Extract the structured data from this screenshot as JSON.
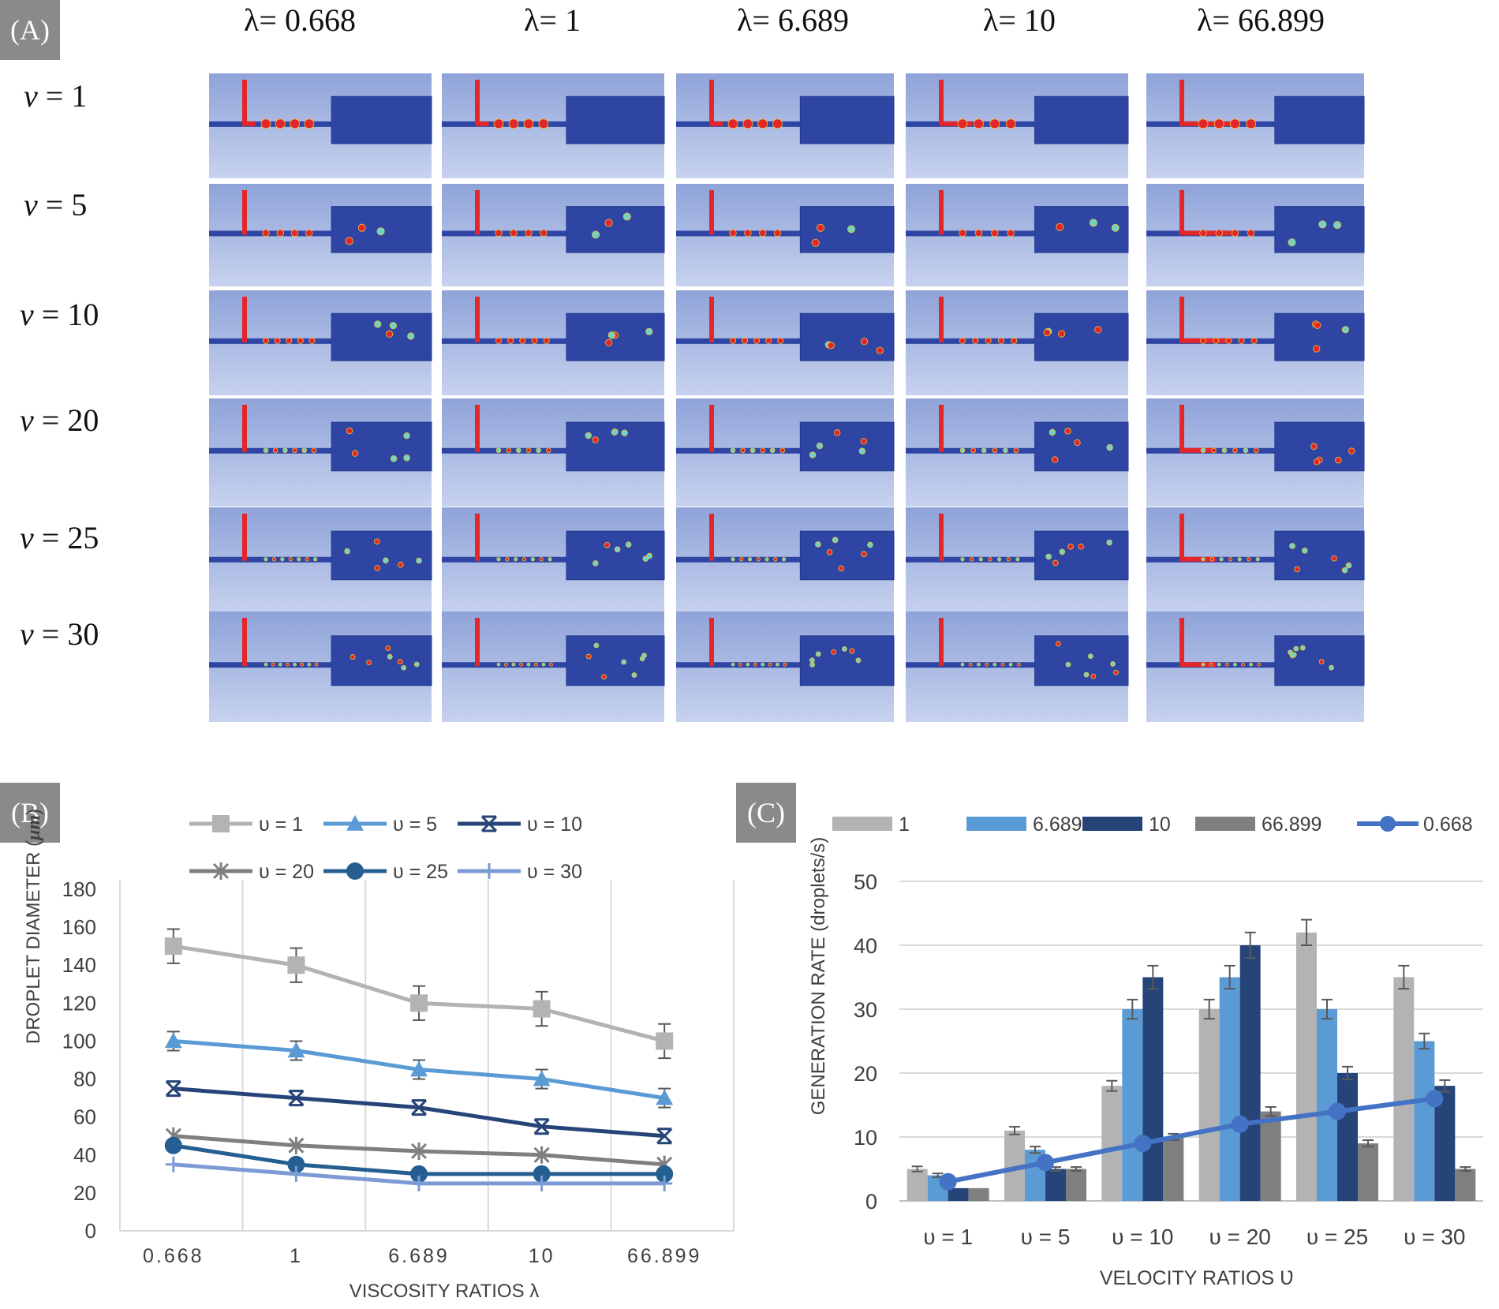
{
  "panels": {
    "a_label": "(A)",
    "b_label": "(B)",
    "c_label": "(C)"
  },
  "simulation_grid": {
    "lambda_headers": [
      "λ= 0.668",
      "λ= 1",
      "λ= 6.689",
      "λ= 10",
      "λ= 66.899"
    ],
    "v_labels": [
      {
        "sym": "v",
        "val": " = 1"
      },
      {
        "sym": "v",
        "val": " = 5"
      },
      {
        "sym": "v",
        "val": " = 10"
      },
      {
        "sym": "v",
        "val": " = 20"
      },
      {
        "sym": "v",
        "val": " = 25"
      },
      {
        "sym": "v",
        "val": " = 30"
      }
    ],
    "colors": {
      "background_top": "#8fa3d9",
      "background_bottom": "#c7d2ee",
      "channel": "#2e45a3",
      "dispersed_phase": "#e3262a",
      "droplet_small": "#6fd3c6"
    }
  },
  "chart_data": [
    {
      "type": "line",
      "title": "",
      "xlabel": "VISCOSITY RATIOS λ",
      "ylabel": "DROPLET DIAMETER (",
      "ylabel_unit": "μm",
      "ylabel_close": ")",
      "categories": [
        "0.668",
        "1",
        "6.689",
        "10",
        "66.899"
      ],
      "ylim": [
        0,
        180
      ],
      "yticks": [
        "0",
        "20",
        "40",
        "60",
        "80",
        "100",
        "120",
        "140",
        "160",
        "180"
      ],
      "grid": "vertical",
      "legend_position": "top",
      "series": [
        {
          "name": "υ = 1",
          "values": [
            150,
            140,
            120,
            117,
            100
          ],
          "errors": [
            9,
            9,
            9,
            9,
            9
          ],
          "color": "#b3b3b3",
          "marker": "square"
        },
        {
          "name": "υ = 5",
          "values": [
            100,
            95,
            85,
            80,
            70
          ],
          "errors": [
            5,
            5,
            5,
            5,
            5
          ],
          "color": "#5b9bd5",
          "marker": "triangle"
        },
        {
          "name": "υ = 10",
          "values": [
            75,
            70,
            65,
            55,
            50
          ],
          "errors": [
            0,
            0,
            0,
            0,
            0
          ],
          "color": "#264478",
          "marker": "x"
        },
        {
          "name": "υ = 20",
          "values": [
            50,
            45,
            42,
            40,
            35
          ],
          "errors": [
            0,
            0,
            0,
            0,
            0
          ],
          "color": "#7f7f7f",
          "marker": "star"
        },
        {
          "name": "υ = 25",
          "values": [
            45,
            35,
            30,
            30,
            30
          ],
          "errors": [
            0,
            0,
            0,
            0,
            0
          ],
          "color": "#255e91",
          "marker": "circle"
        },
        {
          "name": "υ = 30",
          "values": [
            35,
            30,
            25,
            25,
            25
          ],
          "errors": [
            0,
            0,
            0,
            0,
            0
          ],
          "color": "#7c9ad4",
          "marker": "plus"
        }
      ]
    },
    {
      "type": "bar",
      "title": "",
      "xlabel": "VELOCITY RATIOS Ʋ",
      "ylabel": "GENERATION RATE (droplets/s)",
      "categories": [
        "υ = 1",
        "υ = 5",
        "υ = 10",
        "υ = 20",
        "υ = 25",
        "υ = 30"
      ],
      "ylim": [
        0,
        50
      ],
      "yticks": [
        "0",
        "10",
        "20",
        "30",
        "40",
        "50"
      ],
      "grid": "horizontal",
      "legend_position": "top",
      "series": [
        {
          "name": "1",
          "values": [
            5,
            11,
            18,
            30,
            42,
            35
          ],
          "errors": [
            0.4,
            0.6,
            0.8,
            1.5,
            2,
            1.8
          ],
          "color": "#b3b3b3"
        },
        {
          "name": "6.689",
          "values": [
            4,
            8,
            30,
            35,
            30,
            25
          ],
          "errors": [
            0.3,
            0.5,
            1.5,
            1.8,
            1.5,
            1.2
          ],
          "color": "#5b9bd5"
        },
        {
          "name": "10",
          "values": [
            2,
            5,
            35,
            40,
            20,
            18
          ],
          "errors": [
            0,
            0.3,
            1.8,
            2,
            1,
            0.9
          ],
          "color": "#264478"
        },
        {
          "name": "66.899",
          "values": [
            2,
            5,
            10,
            14,
            9,
            5
          ],
          "errors": [
            0,
            0.3,
            0.5,
            0.7,
            0.5,
            0.3
          ],
          "color": "#7f7f7f"
        }
      ],
      "line_series": {
        "name": "0.668",
        "values": [
          3,
          6,
          9,
          12,
          14,
          16
        ],
        "color": "#4472c4",
        "marker": "circle"
      }
    }
  ]
}
